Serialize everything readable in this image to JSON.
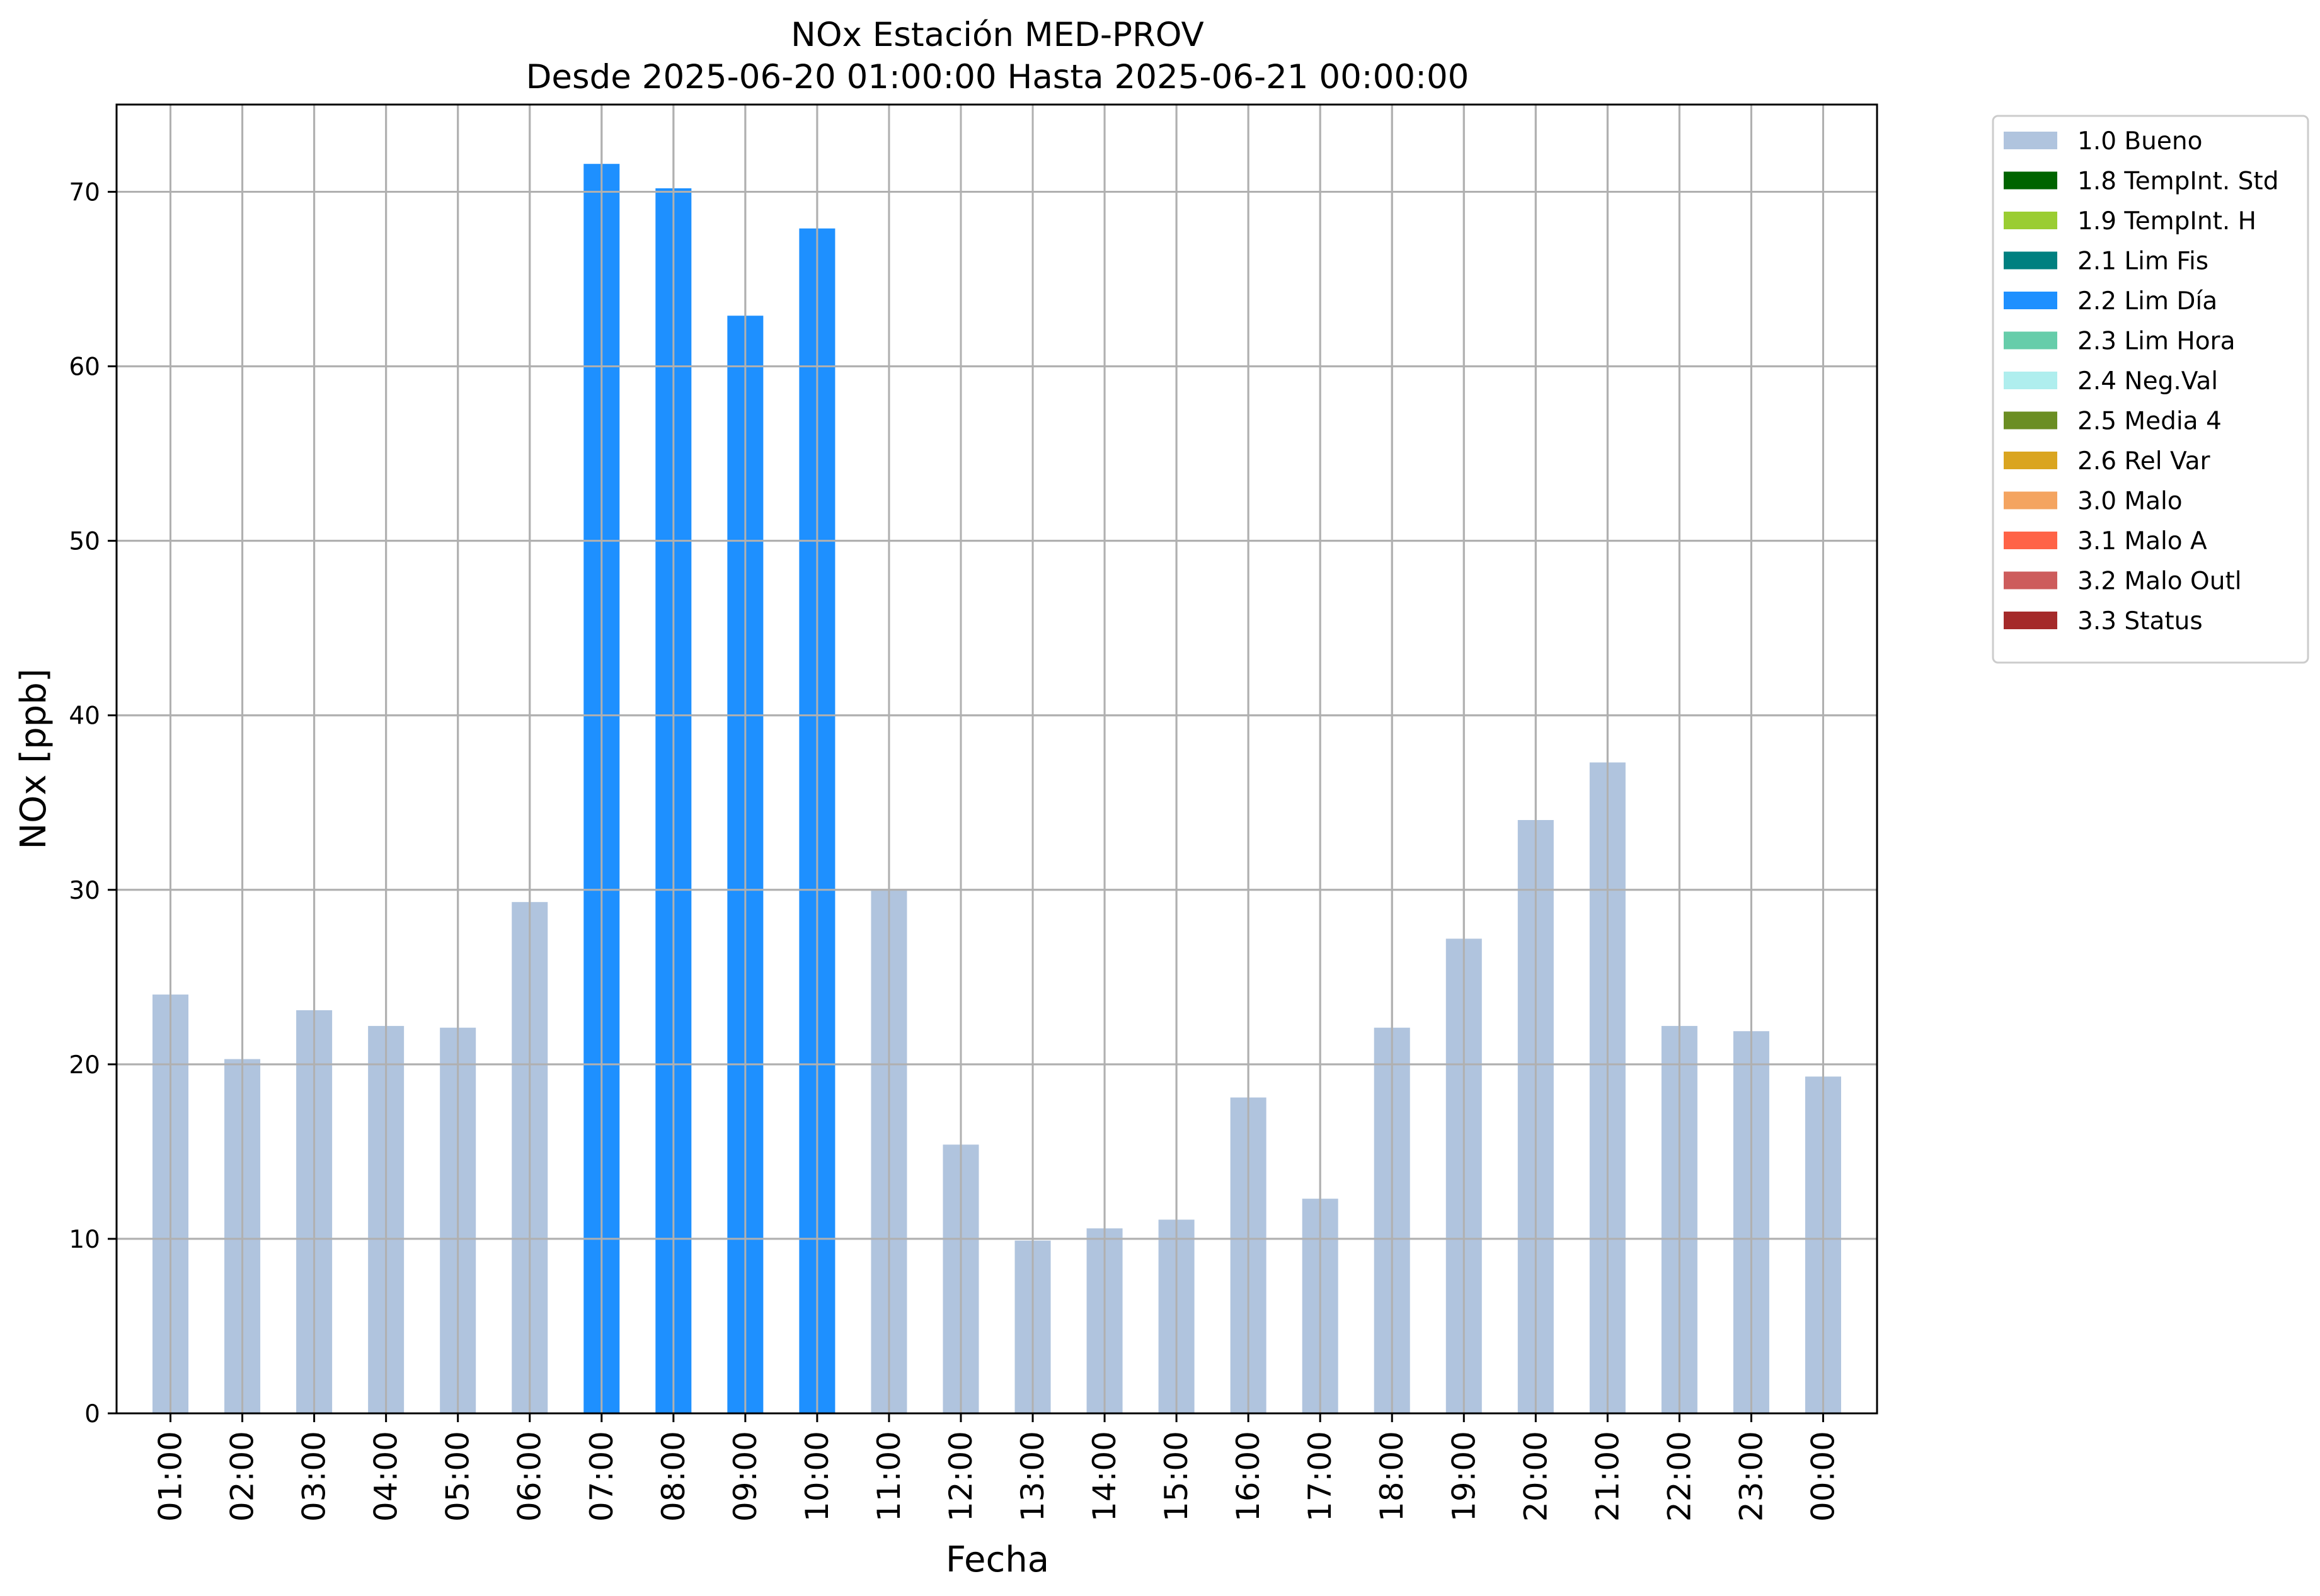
{
  "chart_data": {
    "type": "bar",
    "title": "NOx Estación MED-PROV",
    "subtitle": "Desde 2025-06-20 01:00:00 Hasta 2025-06-21 00:00:00",
    "xlabel": "Fecha",
    "ylabel": "NOx [ppb]",
    "ylim": [
      0,
      75
    ],
    "yticks": [
      0,
      10,
      20,
      30,
      40,
      50,
      60,
      70
    ],
    "grid": true,
    "legend_position": "outside-top-right",
    "categories": [
      "01:00",
      "02:00",
      "03:00",
      "04:00",
      "05:00",
      "06:00",
      "07:00",
      "08:00",
      "09:00",
      "10:00",
      "11:00",
      "12:00",
      "13:00",
      "14:00",
      "15:00",
      "16:00",
      "17:00",
      "18:00",
      "19:00",
      "20:00",
      "21:00",
      "22:00",
      "23:00",
      "00:00"
    ],
    "values": [
      24.0,
      20.3,
      23.1,
      22.2,
      22.1,
      29.3,
      71.6,
      70.2,
      62.9,
      67.9,
      30.0,
      15.4,
      9.9,
      10.6,
      11.1,
      18.1,
      12.3,
      22.1,
      27.2,
      34.0,
      37.3,
      22.2,
      21.9,
      19.3
    ],
    "flags": [
      "1.0 Bueno",
      "1.0 Bueno",
      "1.0 Bueno",
      "1.0 Bueno",
      "1.0 Bueno",
      "1.0 Bueno",
      "2.2 Lim Día",
      "2.2 Lim Día",
      "2.2 Lim Día",
      "2.2 Lim Día",
      "1.0 Bueno",
      "1.0 Bueno",
      "1.0 Bueno",
      "1.0 Bueno",
      "1.0 Bueno",
      "1.0 Bueno",
      "1.0 Bueno",
      "1.0 Bueno",
      "1.0 Bueno",
      "1.0 Bueno",
      "1.0 Bueno",
      "1.0 Bueno",
      "1.0 Bueno",
      "1.0 Bueno"
    ],
    "legend": [
      {
        "label": "1.0 Bueno",
        "color": "#b0c4de"
      },
      {
        "label": "1.8 TempInt. Std",
        "color": "#006400"
      },
      {
        "label": "1.9 TempInt. H",
        "color": "#9acd32"
      },
      {
        "label": "2.1 Lim Fis",
        "color": "#008080"
      },
      {
        "label": "2.2 Lim Día",
        "color": "#1e90ff"
      },
      {
        "label": "2.3 Lim Hora",
        "color": "#66cdaa"
      },
      {
        "label": "2.4 Neg.Val",
        "color": "#afeeee"
      },
      {
        "label": "2.5 Media 4",
        "color": "#6b8e23"
      },
      {
        "label": "2.6 Rel Var",
        "color": "#daa520"
      },
      {
        "label": "3.0 Malo",
        "color": "#f4a460"
      },
      {
        "label": "3.1 Malo A",
        "color": "#ff6347"
      },
      {
        "label": "3.2 Malo Outl",
        "color": "#cd5c5c"
      },
      {
        "label": "3.3 Status",
        "color": "#a52a2a"
      }
    ]
  }
}
